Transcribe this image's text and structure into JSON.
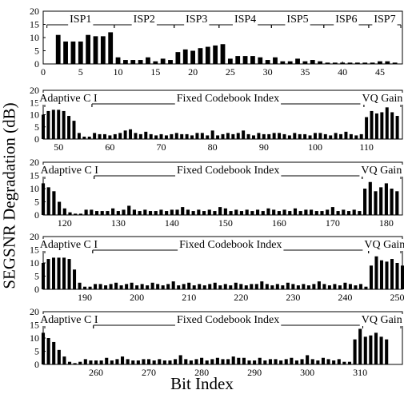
{
  "ylabel": "SEGSNR Degradation (dB)",
  "xlabel": "Bit Index",
  "chart_data": [
    {
      "type": "bar",
      "xlim": [
        0,
        48
      ],
      "ylim": [
        0,
        20
      ],
      "xticks": [
        0,
        5,
        10,
        15,
        20,
        25,
        30,
        35,
        40,
        45
      ],
      "yticks": [
        0,
        5,
        10,
        15,
        20
      ],
      "x_start": 1,
      "values": [
        0,
        11,
        8.5,
        8.5,
        8.5,
        11,
        10.5,
        10.5,
        12,
        2.5,
        1.5,
        1.5,
        1.5,
        2.5,
        1,
        2,
        1.5,
        4.5,
        5.5,
        5,
        6,
        6.5,
        7,
        7.5,
        2,
        3,
        3,
        3,
        2.5,
        1.5,
        2.5,
        1,
        1,
        2,
        1,
        1.5,
        1,
        0.5,
        0.5,
        0.5,
        0.5,
        0.5,
        0.5,
        0.5,
        1,
        1,
        0.5
      ],
      "segments": [
        {
          "label": "ISP1",
          "from": 1,
          "to": 9
        },
        {
          "label": "ISP2",
          "from": 10,
          "to": 17
        },
        {
          "label": "ISP3",
          "from": 18,
          "to": 23
        },
        {
          "label": "ISP4",
          "from": 24,
          "to": 30
        },
        {
          "label": "ISP5",
          "from": 31,
          "to": 37
        },
        {
          "label": "ISP6",
          "from": 38,
          "to": 43
        },
        {
          "label": "ISP7",
          "from": 44,
          "to": 48
        }
      ]
    },
    {
      "type": "bar",
      "xlim": [
        47,
        117
      ],
      "ylim": [
        0,
        20
      ],
      "xticks": [
        50,
        60,
        70,
        80,
        90,
        100,
        110
      ],
      "yticks": [
        0,
        5,
        10,
        15,
        20
      ],
      "x_start": 47,
      "values": [
        10,
        11.5,
        12,
        12,
        11.5,
        9.5,
        7.5,
        2.5,
        1,
        1,
        2.5,
        2,
        2,
        1.5,
        2,
        2.5,
        3.5,
        4,
        2.5,
        2,
        3,
        2,
        1.5,
        2,
        1.5,
        2,
        2.5,
        2,
        2,
        1.5,
        2.5,
        2.5,
        1.5,
        3.5,
        1.5,
        2,
        2.5,
        2,
        2.5,
        3.5,
        2,
        1.5,
        2.5,
        2,
        2,
        2.5,
        2.5,
        2,
        1.5,
        2.5,
        2,
        2,
        1.5,
        2.5,
        2.5,
        2,
        1.5,
        2.5,
        2,
        3,
        2,
        1.5,
        2,
        9,
        11.5,
        10.5,
        11,
        13,
        11,
        9.5
      ],
      "segments": [
        {
          "label": "Adaptive C I",
          "from": 47,
          "to": 56
        },
        {
          "label": "Fixed Codebook Index",
          "from": 57,
          "to": 109
        },
        {
          "label": "VQ Gain",
          "from": 110,
          "to": 117
        }
      ]
    },
    {
      "type": "bar",
      "xlim": [
        116,
        183
      ],
      "ylim": [
        0,
        20
      ],
      "xticks": [
        120,
        130,
        140,
        150,
        160,
        170,
        180
      ],
      "yticks": [
        0,
        5,
        10,
        15,
        20
      ],
      "x_start": 116,
      "values": [
        12,
        10.5,
        9,
        5,
        2.5,
        1,
        0.5,
        0.5,
        2,
        2,
        1.5,
        1.5,
        1.5,
        2.5,
        1.5,
        2,
        3.5,
        2,
        1.5,
        2,
        1.5,
        1.5,
        2,
        1.5,
        2,
        2,
        3,
        2,
        1.5,
        2,
        1.5,
        2,
        1.5,
        3,
        2.5,
        1.5,
        2,
        1.5,
        2,
        1.5,
        2,
        1.5,
        2.5,
        2,
        1.5,
        2,
        1.5,
        2.5,
        1.5,
        2,
        2,
        1.5,
        1.5,
        2,
        3,
        1.5,
        2,
        1.5,
        2,
        1.5,
        10,
        12.5,
        9,
        10.5,
        12,
        10,
        9
      ],
      "segments": [
        {
          "label": "Adaptive C I",
          "from": 116,
          "to": 125
        },
        {
          "label": "Fixed Codebook Index",
          "from": 126,
          "to": 175
        },
        {
          "label": "VQ Gain",
          "from": 176,
          "to": 183
        }
      ]
    },
    {
      "type": "bar",
      "xlim": [
        182,
        251
      ],
      "ylim": [
        0,
        20
      ],
      "xticks": [
        190,
        200,
        210,
        220,
        230,
        240,
        250
      ],
      "yticks": [
        0,
        5,
        10,
        15,
        20
      ],
      "x_start": 182,
      "values": [
        10,
        11.5,
        12,
        12,
        12,
        11.5,
        7.5,
        2.5,
        1,
        1,
        2,
        2,
        1.5,
        2,
        2.5,
        1.5,
        2,
        2.5,
        1.5,
        2,
        1.5,
        2.5,
        2,
        1.5,
        2,
        3,
        1.5,
        2,
        2.5,
        1.5,
        2,
        1.5,
        2,
        2.5,
        1.5,
        2,
        1.5,
        2.5,
        2,
        1.5,
        2,
        2,
        3,
        2,
        1.5,
        2,
        1.5,
        2.5,
        2,
        1.5,
        2,
        1.5,
        2,
        3,
        2,
        1.5,
        2,
        1.5,
        2.5,
        2,
        1.5,
        2,
        1,
        9,
        12.5,
        11,
        10.5,
        11.5,
        10,
        9
      ],
      "segments": [
        {
          "label": "Adaptive C I",
          "from": 182,
          "to": 191
        },
        {
          "label": "Fixed Codebook Index",
          "from": 192,
          "to": 244
        },
        {
          "label": "VQ Gain",
          "from": 245,
          "to": 251
        }
      ]
    },
    {
      "type": "bar",
      "xlim": [
        250,
        318
      ],
      "ylim": [
        0,
        20
      ],
      "xticks": [
        260,
        270,
        280,
        290,
        300,
        310
      ],
      "yticks": [
        0,
        5,
        10,
        15,
        20
      ],
      "x_start": 250,
      "values": [
        12,
        10,
        8.5,
        5.5,
        3,
        1,
        0.5,
        1,
        2,
        1.5,
        1.5,
        1.5,
        2.5,
        1.5,
        2,
        3,
        2,
        1.5,
        1.5,
        2,
        2,
        1.5,
        2,
        1.5,
        1.5,
        2,
        3.5,
        2,
        1.5,
        2,
        2.5,
        1.5,
        2,
        2.5,
        2,
        2,
        3,
        2.5,
        2.5,
        1.5,
        1.5,
        2.5,
        1.5,
        2,
        2,
        1.5,
        2,
        2.5,
        1.5,
        2,
        3.5,
        2,
        1.5,
        2.5,
        2,
        1.5,
        2,
        1,
        1,
        9.5,
        13.5,
        10.5,
        11,
        12,
        10.5,
        9.5
      ],
      "segments": [
        {
          "label": "Adaptive C I",
          "from": 250,
          "to": 259
        },
        {
          "label": "Fixed Codebook Index",
          "from": 260,
          "to": 310
        },
        {
          "label": "VQ Gain",
          "from": 311,
          "to": 318
        }
      ]
    }
  ]
}
